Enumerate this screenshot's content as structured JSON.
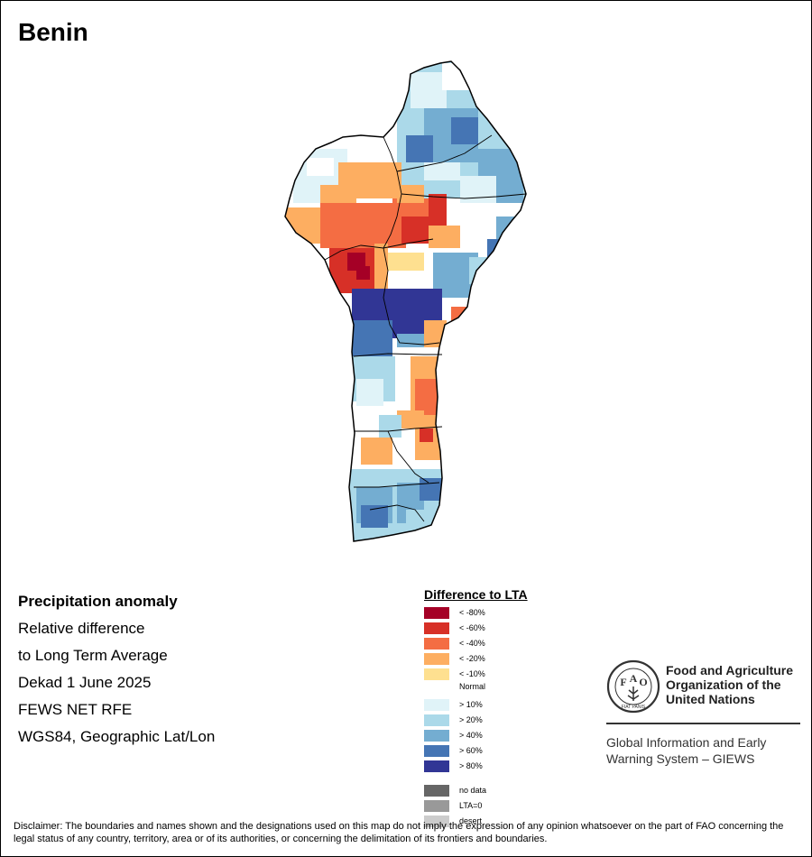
{
  "map": {
    "title": "Benin"
  },
  "info": {
    "heading": "Precipitation anomaly",
    "lines": [
      "Relative difference",
      "to Long Term Average",
      "Dekad 1 June 2025",
      "FEWS NET RFE",
      "WGS84, Geographic Lat/Lon"
    ]
  },
  "legend": {
    "title": "Difference to LTA",
    "dry": [
      {
        "label": "< -80%",
        "color": "#a50026"
      },
      {
        "label": "< -60%",
        "color": "#d73027"
      },
      {
        "label": "< -40%",
        "color": "#f46d43"
      },
      {
        "label": "< -20%",
        "color": "#fdae61"
      },
      {
        "label": "< -10%",
        "color": "#fee090"
      }
    ],
    "normal_label": "Normal",
    "wet": [
      {
        "label": "> 10%",
        "color": "#e0f3f8"
      },
      {
        "label": "> 20%",
        "color": "#abd9e9"
      },
      {
        "label": "> 40%",
        "color": "#74add1"
      },
      {
        "label": "> 60%",
        "color": "#4575b4"
      },
      {
        "label": "> 80%",
        "color": "#313695"
      }
    ],
    "special": [
      {
        "label": "no data",
        "color": "#666666"
      },
      {
        "label": "LTA=0",
        "color": "#999999"
      },
      {
        "label": "desert",
        "color": "#cccccc"
      }
    ]
  },
  "org": {
    "logo_letters": [
      "F",
      "A",
      "O"
    ],
    "logo_motto": "FIAT PANIS",
    "name_lines": [
      "Food and Agriculture",
      "Organization of the",
      "United Nations"
    ],
    "system_lines": [
      "Global Information and Early",
      "Warning System – GIEWS"
    ]
  },
  "disclaimer": "Disclaimer: The boundaries and names shown and the designations used on this map do not imply the expression of any opinion whatsoever on the part of FAO concerning the legal status of any country, territory, area or of its authorities, or concerning the delimitation of its frontiers and boundaries."
}
